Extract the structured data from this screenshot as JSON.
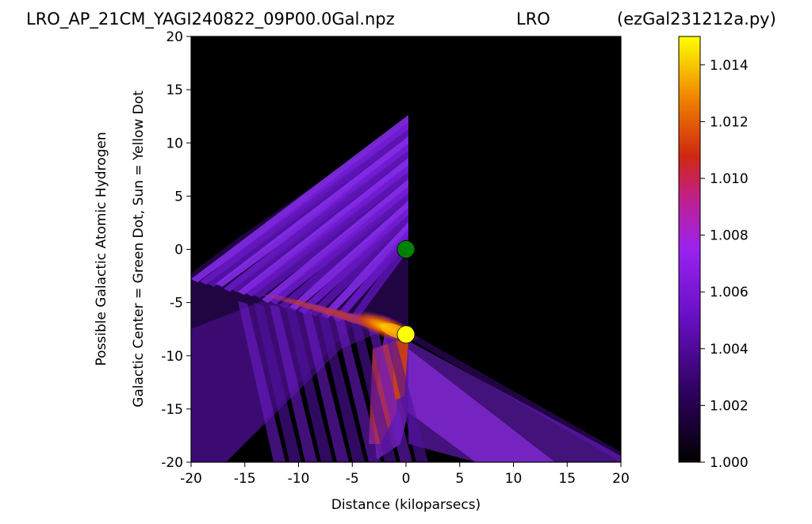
{
  "header": {
    "left": "LRO_AP_21CM_YAGI240822_09P00.0Gal.npz",
    "center": "LRO",
    "right": "(ezGal231212a.py)"
  },
  "chart_data": {
    "type": "heatmap",
    "xlabel": "Distance (kiloparsecs)",
    "ylabel_lines": [
      "Possible Galactic Atomic Hydrogen",
      "Galactic Center = Green Dot, Sun = Yellow Dot"
    ],
    "xlim": [
      -20,
      20
    ],
    "ylim": [
      -20,
      20
    ],
    "x_ticks": [
      -20,
      -15,
      -10,
      -5,
      0,
      5,
      10,
      15,
      20
    ],
    "y_ticks": [
      -20,
      -15,
      -10,
      -5,
      0,
      5,
      10,
      15,
      20
    ],
    "colorbar": {
      "colormap": "gnuplot",
      "range": [
        1.0,
        1.015
      ],
      "ticks": [
        "1.000",
        "1.002",
        "1.004",
        "1.006",
        "1.008",
        "1.010",
        "1.012",
        "1.014"
      ],
      "tick_values": [
        1.0,
        1.002,
        1.004,
        1.006,
        1.008,
        1.01,
        1.012,
        1.014
      ]
    },
    "markers": [
      {
        "name": "Galactic Center",
        "x": 0,
        "y": 0,
        "color": "#008000"
      },
      {
        "name": "Sun",
        "x": 0,
        "y": -8,
        "color": "#ffff00"
      }
    ],
    "background_color": "#000000"
  }
}
